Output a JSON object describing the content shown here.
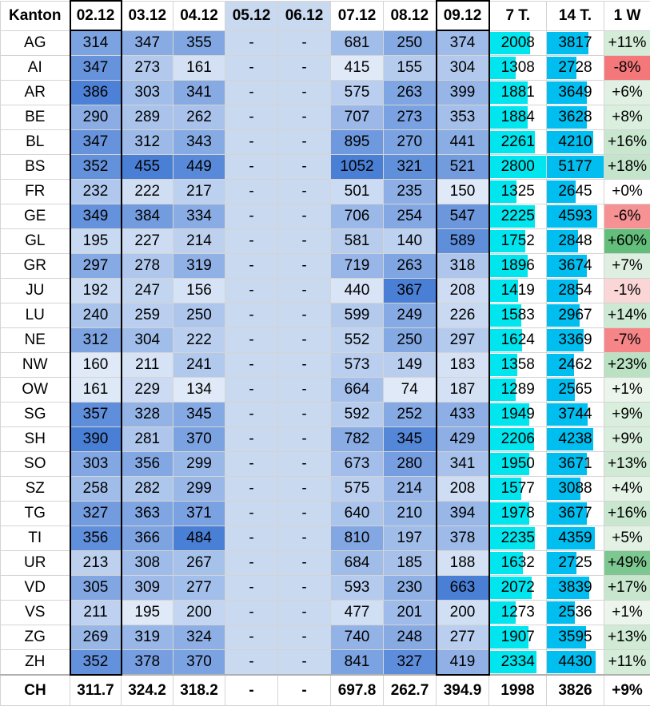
{
  "headers": [
    "Kanton",
    "02.12",
    "03.12",
    "04.12",
    "05.12",
    "06.12",
    "07.12",
    "08.12",
    "09.12",
    "7 T.",
    "14 T.",
    "1 W"
  ],
  "rows": [
    {
      "k": "AG",
      "d": [
        314,
        347,
        355,
        "-",
        "-",
        681,
        250,
        374
      ],
      "t7": 2008,
      "t14": 3817,
      "w": "+11%"
    },
    {
      "k": "AI",
      "d": [
        347,
        273,
        161,
        "-",
        "-",
        415,
        155,
        304
      ],
      "t7": 1308,
      "t14": 2728,
      "w": "-8%"
    },
    {
      "k": "AR",
      "d": [
        386,
        303,
        341,
        "-",
        "-",
        575,
        263,
        399
      ],
      "t7": 1881,
      "t14": 3649,
      "w": "+6%"
    },
    {
      "k": "BE",
      "d": [
        290,
        289,
        262,
        "-",
        "-",
        707,
        273,
        353
      ],
      "t7": 1884,
      "t14": 3628,
      "w": "+8%"
    },
    {
      "k": "BL",
      "d": [
        347,
        312,
        343,
        "-",
        "-",
        895,
        270,
        441
      ],
      "t7": 2261,
      "t14": 4210,
      "w": "+16%"
    },
    {
      "k": "BS",
      "d": [
        352,
        455,
        449,
        "-",
        "-",
        1052,
        321,
        521
      ],
      "t7": 2800,
      "t14": 5177,
      "w": "+18%"
    },
    {
      "k": "FR",
      "d": [
        232,
        222,
        217,
        "-",
        "-",
        501,
        235,
        150
      ],
      "t7": 1325,
      "t14": 2645,
      "w": "+0%"
    },
    {
      "k": "GE",
      "d": [
        349,
        384,
        334,
        "-",
        "-",
        706,
        254,
        547
      ],
      "t7": 2225,
      "t14": 4593,
      "w": "-6%"
    },
    {
      "k": "GL",
      "d": [
        195,
        227,
        214,
        "-",
        "-",
        581,
        140,
        589
      ],
      "t7": 1752,
      "t14": 2848,
      "w": "+60%"
    },
    {
      "k": "GR",
      "d": [
        297,
        278,
        319,
        "-",
        "-",
        719,
        263,
        318
      ],
      "t7": 1896,
      "t14": 3674,
      "w": "+7%"
    },
    {
      "k": "JU",
      "d": [
        192,
        247,
        156,
        "-",
        "-",
        440,
        367,
        208
      ],
      "t7": 1419,
      "t14": 2854,
      "w": "-1%"
    },
    {
      "k": "LU",
      "d": [
        240,
        259,
        250,
        "-",
        "-",
        599,
        249,
        226
      ],
      "t7": 1583,
      "t14": 2967,
      "w": "+14%"
    },
    {
      "k": "NE",
      "d": [
        312,
        304,
        222,
        "-",
        "-",
        552,
        250,
        297
      ],
      "t7": 1624,
      "t14": 3369,
      "w": "-7%"
    },
    {
      "k": "NW",
      "d": [
        160,
        211,
        241,
        "-",
        "-",
        573,
        149,
        183
      ],
      "t7": 1358,
      "t14": 2462,
      "w": "+23%"
    },
    {
      "k": "OW",
      "d": [
        161,
        229,
        134,
        "-",
        "-",
        664,
        74,
        187
      ],
      "t7": 1289,
      "t14": 2565,
      "w": "+1%"
    },
    {
      "k": "SG",
      "d": [
        357,
        328,
        345,
        "-",
        "-",
        592,
        252,
        433
      ],
      "t7": 1949,
      "t14": 3744,
      "w": "+9%"
    },
    {
      "k": "SH",
      "d": [
        390,
        281,
        370,
        "-",
        "-",
        782,
        345,
        429
      ],
      "t7": 2206,
      "t14": 4238,
      "w": "+9%"
    },
    {
      "k": "SO",
      "d": [
        303,
        356,
        299,
        "-",
        "-",
        673,
        280,
        341
      ],
      "t7": 1950,
      "t14": 3671,
      "w": "+13%"
    },
    {
      "k": "SZ",
      "d": [
        258,
        282,
        299,
        "-",
        "-",
        575,
        214,
        208
      ],
      "t7": 1577,
      "t14": 3088,
      "w": "+4%"
    },
    {
      "k": "TG",
      "d": [
        327,
        363,
        371,
        "-",
        "-",
        640,
        210,
        394
      ],
      "t7": 1978,
      "t14": 3677,
      "w": "+16%"
    },
    {
      "k": "TI",
      "d": [
        356,
        366,
        484,
        "-",
        "-",
        810,
        197,
        378
      ],
      "t7": 2235,
      "t14": 4359,
      "w": "+5%"
    },
    {
      "k": "UR",
      "d": [
        213,
        308,
        267,
        "-",
        "-",
        684,
        185,
        188
      ],
      "t7": 1632,
      "t14": 2725,
      "w": "+49%"
    },
    {
      "k": "VD",
      "d": [
        305,
        309,
        277,
        "-",
        "-",
        593,
        230,
        663
      ],
      "t7": 2072,
      "t14": 3839,
      "w": "+17%"
    },
    {
      "k": "VS",
      "d": [
        211,
        195,
        200,
        "-",
        "-",
        477,
        201,
        200
      ],
      "t7": 1273,
      "t14": 2536,
      "w": "+1%"
    },
    {
      "k": "ZG",
      "d": [
        269,
        319,
        324,
        "-",
        "-",
        740,
        248,
        277
      ],
      "t7": 1907,
      "t14": 3595,
      "w": "+13%"
    },
    {
      "k": "ZH",
      "d": [
        352,
        378,
        370,
        "-",
        "-",
        841,
        327,
        419
      ],
      "t7": 2334,
      "t14": 4430,
      "w": "+11%"
    }
  ],
  "footer": {
    "k": "CH",
    "d": [
      "311.7",
      "324.2",
      "318.2",
      "-",
      "-",
      "697.8",
      "262.7",
      "394.9"
    ],
    "t7": "1998",
    "t14": "3826",
    "w": "+9%"
  },
  "colors": {
    "heat_low": "#dfe9f7",
    "heat_high": "#4a7fd6",
    "empty_col": "#c9d9ef",
    "bar_7t": "#00e5ee",
    "bar_14t": "#00bff0",
    "pos_high": "#63be7b",
    "pos_low": "#eef6ee",
    "neg_low": "#fbe3e3",
    "neg_high": "#f4777a"
  }
}
